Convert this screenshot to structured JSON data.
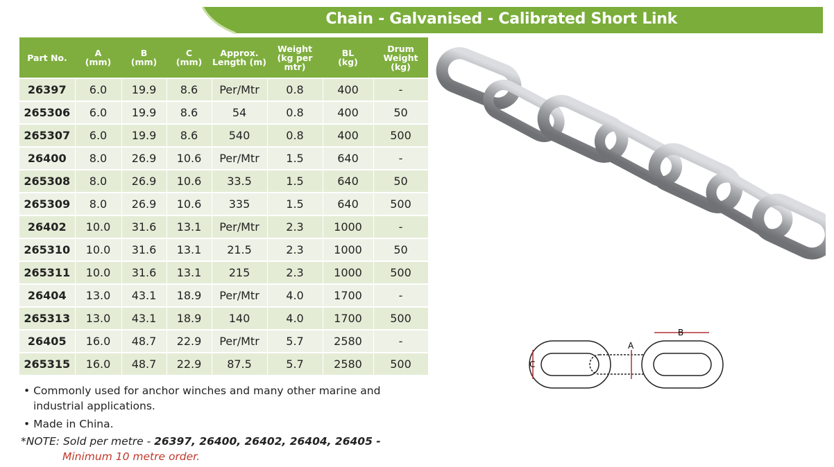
{
  "header": {
    "title": "Chain - Galvanised - Calibrated Short Link"
  },
  "table": {
    "headers": [
      [
        "Part No."
      ],
      [
        "A",
        "(mm)"
      ],
      [
        "B",
        "(mm)"
      ],
      [
        "C",
        "(mm)"
      ],
      [
        "Approx.",
        "Length (m)"
      ],
      [
        "Weight",
        "(kg per",
        "mtr)"
      ],
      [
        "BL",
        "(kg)"
      ],
      [
        "Drum",
        "Weight",
        "(kg)"
      ]
    ],
    "rows": [
      [
        "26397",
        "6.0",
        "19.9",
        "8.6",
        "Per/Mtr",
        "0.8",
        "400",
        "-"
      ],
      [
        "265306",
        "6.0",
        "19.9",
        "8.6",
        "54",
        "0.8",
        "400",
        "50"
      ],
      [
        "265307",
        "6.0",
        "19.9",
        "8.6",
        "540",
        "0.8",
        "400",
        "500"
      ],
      [
        "26400",
        "8.0",
        "26.9",
        "10.6",
        "Per/Mtr",
        "1.5",
        "640",
        "-"
      ],
      [
        "265308",
        "8.0",
        "26.9",
        "10.6",
        "33.5",
        "1.5",
        "640",
        "50"
      ],
      [
        "265309",
        "8.0",
        "26.9",
        "10.6",
        "335",
        "1.5",
        "640",
        "500"
      ],
      [
        "26402",
        "10.0",
        "31.6",
        "13.1",
        "Per/Mtr",
        "2.3",
        "1000",
        "-"
      ],
      [
        "265310",
        "10.0",
        "31.6",
        "13.1",
        "21.5",
        "2.3",
        "1000",
        "50"
      ],
      [
        "265311",
        "10.0",
        "31.6",
        "13.1",
        "215",
        "2.3",
        "1000",
        "500"
      ],
      [
        "26404",
        "13.0",
        "43.1",
        "18.9",
        "Per/Mtr",
        "4.0",
        "1700",
        "-"
      ],
      [
        "265313",
        "13.0",
        "43.1",
        "18.9",
        "140",
        "4.0",
        "1700",
        "500"
      ],
      [
        "26405",
        "16.0",
        "48.7",
        "22.9",
        "Per/Mtr",
        "5.7",
        "2580",
        "-"
      ],
      [
        "265315",
        "16.0",
        "48.7",
        "22.9",
        "87.5",
        "5.7",
        "2580",
        "500"
      ]
    ]
  },
  "bullets": [
    "Commonly used for anchor winches and many other marine and industrial applications.",
    "Made in China."
  ],
  "note": {
    "prefix": "*NOTE: Sold per metre - ",
    "parts": "26397, 26400, 26402, 26404, 26405",
    "dash": " - ",
    "highlight": "Minimum 10 metre order."
  },
  "diagram": {
    "labels": {
      "a": "A",
      "b": "B",
      "c": "C"
    }
  }
}
